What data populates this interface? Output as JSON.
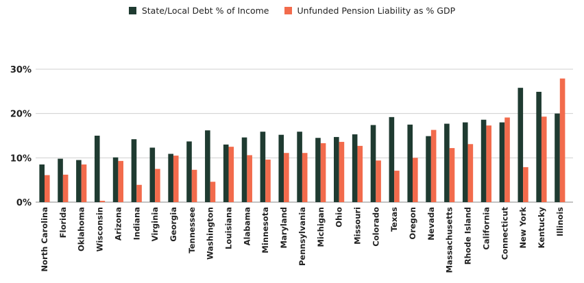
{
  "chart_data": {
    "type": "bar",
    "title": "",
    "xlabel": "",
    "ylabel": "",
    "ylim": [
      0,
      30
    ],
    "yticks": [
      "0%",
      "10%",
      "20%",
      "30%"
    ],
    "ytick_values": [
      0,
      10,
      20,
      30
    ],
    "legend_position": "top-center",
    "grid": "horizontal",
    "categories": [
      "North Carolina",
      "Florida",
      "Oklahoma",
      "Wisconsin",
      "Arizona",
      "Indiana",
      "Virginia",
      "Georgia",
      "Tennessee",
      "Washington",
      "Louisiana",
      "Alabama",
      "Minnesota",
      "Maryland",
      "Pennsylvania",
      "Michigan",
      "Ohio",
      "Missouri",
      "Colorado",
      "Texas",
      "Oregon",
      "Nevada",
      "Massachusetts",
      "Rhode Island",
      "California",
      "Connecticut",
      "New York",
      "Kentucky",
      "Illinois"
    ],
    "series": [
      {
        "name": "State/Local Debt % of Income",
        "color": "#1f3b31",
        "values": [
          8.5,
          9.8,
          9.5,
          15.0,
          10.1,
          14.2,
          12.3,
          10.9,
          13.7,
          16.2,
          13.0,
          14.6,
          15.9,
          15.2,
          15.9,
          14.5,
          14.7,
          15.3,
          17.4,
          19.2,
          17.5,
          14.9,
          17.7,
          18.0,
          18.6,
          18.0,
          25.8,
          24.9,
          20.0
        ]
      },
      {
        "name": "Unfunded Pension Liability as % GDP",
        "color": "#f26b4c",
        "values": [
          6.1,
          6.2,
          8.5,
          0.3,
          9.3,
          3.9,
          7.5,
          10.5,
          7.3,
          4.6,
          12.5,
          10.6,
          9.6,
          11.1,
          11.1,
          13.3,
          13.6,
          12.7,
          9.4,
          7.1,
          10.0,
          16.3,
          12.2,
          13.1,
          17.3,
          19.1,
          7.9,
          19.3,
          27.9
        ]
      }
    ]
  }
}
